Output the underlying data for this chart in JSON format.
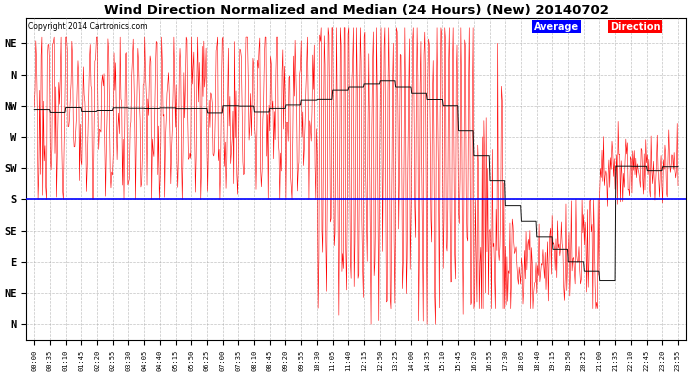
{
  "title": "Wind Direction Normalized and Median (24 Hours) (New) 20140702",
  "copyright": "Copyright 2014 Cartronics.com",
  "ytick_labels": [
    "NE",
    "N",
    "NW",
    "W",
    "SW",
    "S",
    "SE",
    "E",
    "NE",
    "N"
  ],
  "ytick_values": [
    9,
    8,
    7,
    6,
    5,
    4,
    3,
    2,
    1,
    0
  ],
  "blue_line_y": 4.0,
  "background_color": "#FFFFFF",
  "grid_color": "#AAAAAA",
  "xtick_labels": [
    "00:00",
    "00:35",
    "01:10",
    "01:45",
    "02:20",
    "02:55",
    "03:30",
    "04:05",
    "04:40",
    "05:15",
    "05:50",
    "06:25",
    "07:00",
    "07:35",
    "08:10",
    "08:45",
    "09:20",
    "09:55",
    "10:30",
    "11:05",
    "11:40",
    "12:15",
    "12:50",
    "13:25",
    "14:00",
    "14:35",
    "15:10",
    "15:45",
    "16:20",
    "16:55",
    "17:30",
    "18:05",
    "18:40",
    "19:15",
    "19:50",
    "20:25",
    "21:00",
    "21:35",
    "22:10",
    "22:45",
    "23:20",
    "23:55"
  ]
}
